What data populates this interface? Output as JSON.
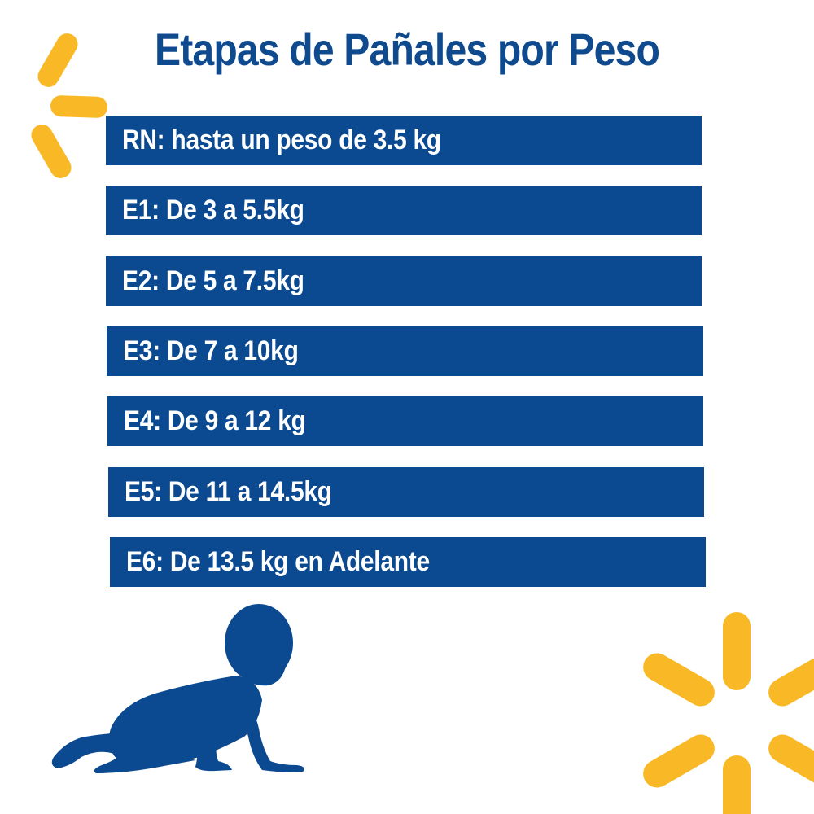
{
  "title": "Etapas de Pañales por Peso",
  "stages": [
    {
      "label": "RN: hasta un peso de 3.5 kg"
    },
    {
      "label": "E1: De 3 a 5.5kg"
    },
    {
      "label": "E2: De 5 a 7.5kg"
    },
    {
      "label": "E3: De 7 a 10kg"
    },
    {
      "label": "E4: De 9 a 12 kg"
    },
    {
      "label": "E5: De 11 a 14.5kg"
    },
    {
      "label": "E6: De 13.5 kg en Adelante"
    }
  ],
  "colors": {
    "bar": "#0b4a91",
    "title": "#0f4a8f",
    "spark": "#f9b826",
    "silhouette": "#0b4a91"
  },
  "icons": {
    "top_left": "spark-partial-icon",
    "bottom_right": "spark-icon",
    "bottom_left": "crawling-baby-icon"
  }
}
